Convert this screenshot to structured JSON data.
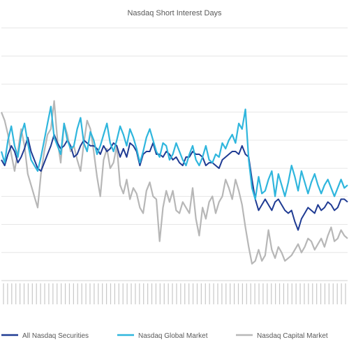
{
  "chart_data": {
    "type": "line",
    "title": "Nasdaq Short Interest Days",
    "xlabel": "",
    "ylabel": "",
    "ylim": [
      0,
      9
    ],
    "grid": true,
    "legend_position": "bottom",
    "series": [
      {
        "name": "All Nasdaq Securities",
        "color": "#1f3b93",
        "values": [
          4.3,
          4.1,
          4.5,
          4.8,
          4.6,
          4.2,
          4.4,
          4.7,
          5.1,
          4.6,
          4.3,
          4.0,
          3.9,
          4.2,
          4.5,
          4.8,
          5.2,
          4.9,
          4.7,
          4.8,
          5.0,
          4.8,
          4.4,
          4.5,
          4.8,
          5.0,
          4.9,
          4.8,
          4.8,
          4.7,
          4.5,
          4.8,
          4.6,
          4.7,
          4.9,
          4.8,
          4.4,
          4.7,
          4.4,
          4.9,
          4.8,
          4.6,
          4.1,
          4.5,
          4.6,
          4.6,
          4.9,
          4.5,
          4.5,
          4.4,
          4.6,
          4.5,
          4.3,
          4.4,
          4.2,
          4.1,
          4.4,
          4.4,
          4.6,
          4.5,
          4.5,
          4.4,
          4.1,
          4.2,
          4.2,
          4.1,
          4.0,
          4.3,
          4.4,
          4.5,
          4.6,
          4.6,
          4.5,
          4.8,
          4.5,
          4.4,
          3.6,
          2.9,
          2.5,
          2.7,
          2.9,
          2.7,
          2.5,
          2.8,
          2.9,
          2.7,
          2.5,
          2.4,
          2.5,
          2.1,
          1.8,
          2.2,
          2.4,
          2.6,
          2.5,
          2.4,
          2.7,
          2.5,
          2.6,
          2.8,
          2.7,
          2.5,
          2.6,
          2.9,
          2.9,
          2.8
        ]
      },
      {
        "name": "Nasdaq Global Market",
        "color": "#2fb6dd",
        "values": [
          4.6,
          4.2,
          5.0,
          5.5,
          4.8,
          4.4,
          5.2,
          5.6,
          4.9,
          4.3,
          4.1,
          3.9,
          4.4,
          5.0,
          5.6,
          6.2,
          5.1,
          4.8,
          4.5,
          5.6,
          5.0,
          4.7,
          4.8,
          5.4,
          5.8,
          4.9,
          4.6,
          5.3,
          5.0,
          4.5,
          4.8,
          5.2,
          5.6,
          4.9,
          4.6,
          5.0,
          5.5,
          5.2,
          4.8,
          5.4,
          5.1,
          4.7,
          4.2,
          4.6,
          5.1,
          5.4,
          5.0,
          4.6,
          4.4,
          4.9,
          4.8,
          4.3,
          4.5,
          4.9,
          4.6,
          4.3,
          4.1,
          4.5,
          4.8,
          4.3,
          4.1,
          4.4,
          4.8,
          4.3,
          4.2,
          4.5,
          4.4,
          4.9,
          4.7,
          5.0,
          5.2,
          4.9,
          5.6,
          5.4,
          6.1,
          4.3,
          3.3,
          2.9,
          3.7,
          3.1,
          3.2,
          3.6,
          3.9,
          3.0,
          3.8,
          3.4,
          3.0,
          3.5,
          4.1,
          3.7,
          3.2,
          3.9,
          3.5,
          3.1,
          3.5,
          3.8,
          3.4,
          3.1,
          3.4,
          3.6,
          3.3,
          3.0,
          3.3,
          3.6,
          3.3,
          3.4
        ]
      },
      {
        "name": "Nasdaq Capital Market",
        "color": "#b7b7b7",
        "values": [
          6.0,
          5.7,
          5.2,
          4.5,
          3.9,
          4.6,
          5.4,
          4.8,
          3.8,
          3.4,
          3.0,
          2.6,
          3.8,
          4.6,
          5.2,
          5.4,
          6.4,
          5.0,
          4.2,
          5.6,
          5.2,
          4.6,
          4.8,
          4.3,
          3.9,
          4.9,
          5.7,
          5.4,
          4.6,
          3.7,
          3.0,
          4.3,
          4.7,
          4.0,
          4.2,
          4.8,
          3.4,
          3.1,
          3.6,
          2.9,
          3.3,
          3.1,
          2.6,
          2.4,
          3.2,
          3.5,
          3.0,
          2.9,
          1.4,
          2.6,
          3.2,
          2.8,
          3.2,
          2.5,
          2.4,
          2.8,
          2.6,
          2.4,
          3.3,
          2.2,
          1.6,
          2.6,
          2.2,
          2.8,
          3.0,
          2.4,
          2.8,
          3.0,
          3.6,
          3.3,
          2.9,
          3.6,
          3.2,
          2.7,
          1.9,
          1.2,
          0.6,
          0.7,
          1.1,
          0.7,
          0.9,
          1.8,
          1.1,
          0.8,
          1.2,
          1.0,
          0.7,
          0.8,
          0.9,
          1.1,
          1.3,
          1.0,
          1.2,
          1.5,
          1.4,
          1.1,
          1.3,
          1.5,
          1.2,
          1.6,
          1.9,
          1.4,
          1.5,
          1.8,
          1.6,
          1.5
        ]
      }
    ]
  }
}
